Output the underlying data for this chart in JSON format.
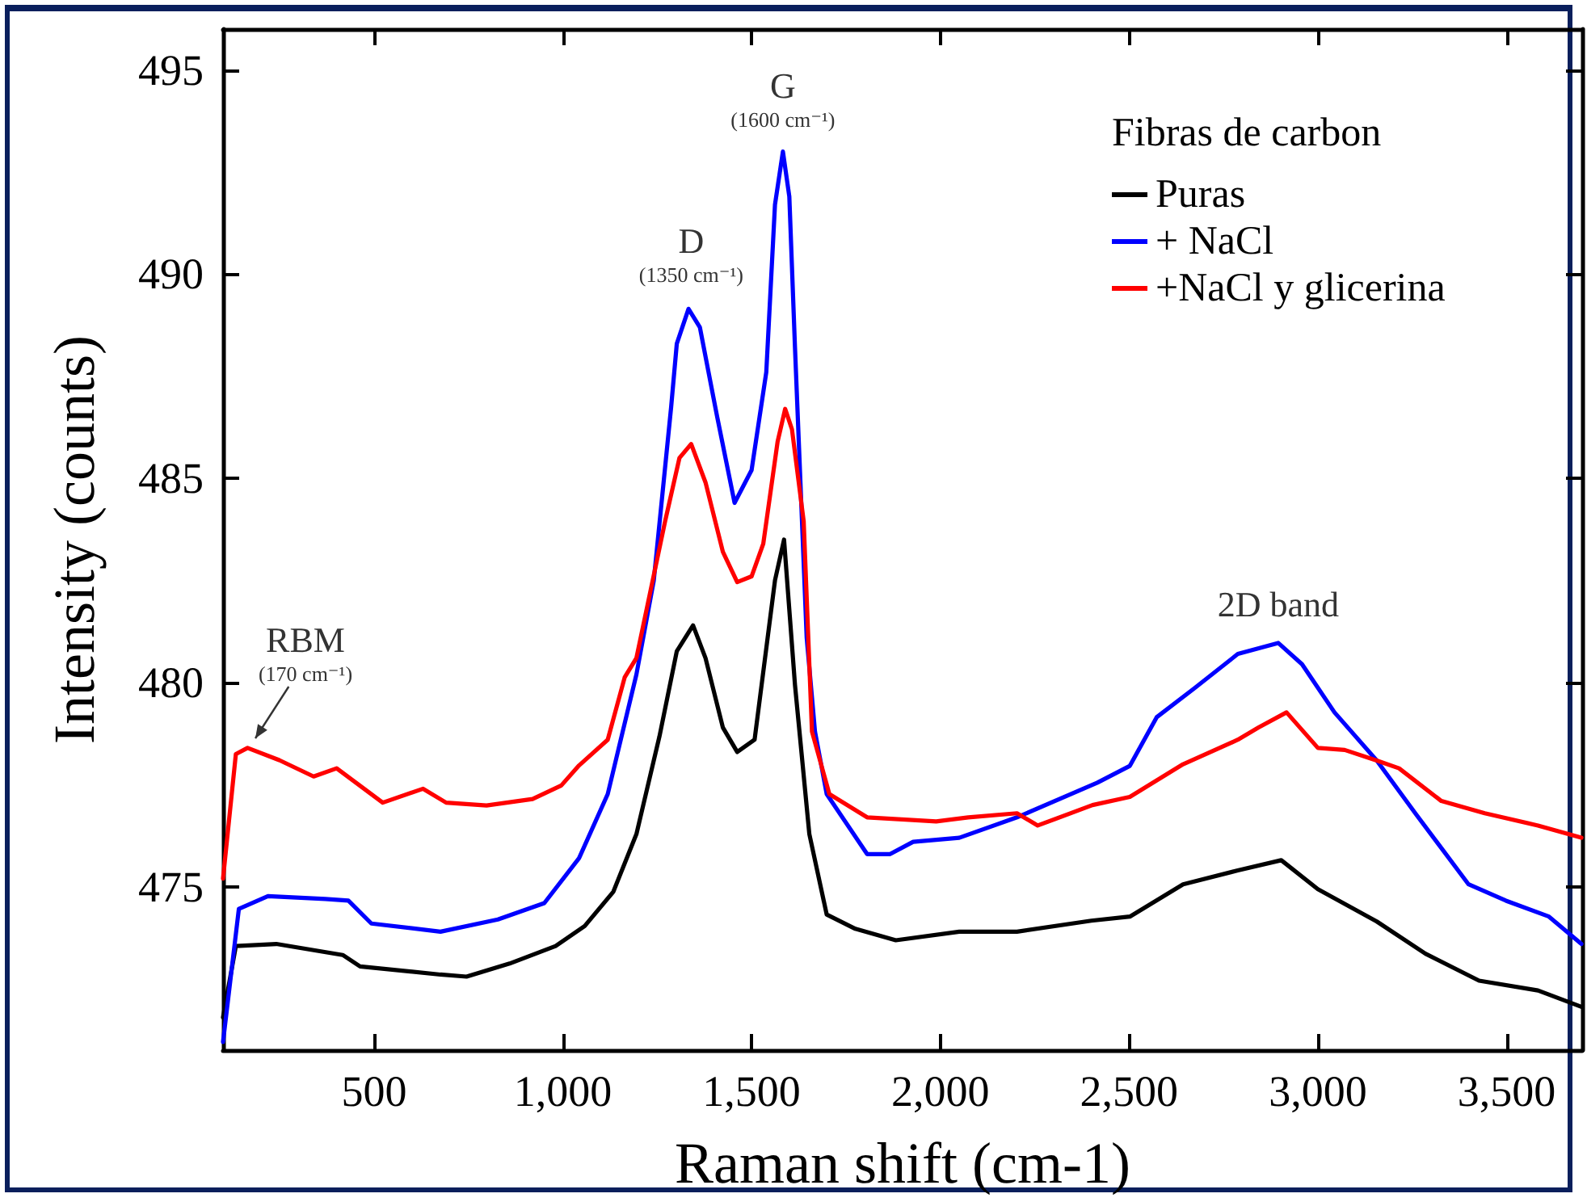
{
  "chart_data": {
    "type": "line",
    "xlabel": "Raman shift (cm-1)",
    "ylabel": "Intensity (counts)",
    "legend_title": "Fibras de carbon",
    "legend": "top right",
    "grid": false,
    "marker": "none",
    "line_style": "solid",
    "xlim": [
      100,
      3700
    ],
    "ylim": [
      471,
      496
    ],
    "xticks": [
      500,
      {
        "value": 1000,
        "label": "1,000"
      },
      {
        "value": 1500,
        "label": "1,500"
      },
      {
        "value": 2000,
        "label": "2,000"
      },
      {
        "value": 2500,
        "label": "2,500"
      },
      {
        "value": 3000,
        "label": "3,000"
      },
      {
        "value": 3500,
        "label": "3,500"
      }
    ],
    "yticks": [
      475,
      480,
      485,
      490,
      495
    ],
    "annotations": [
      {
        "text": "RBM\n(170 cm⁻¹)",
        "x": 170,
        "y": 478.4
      },
      {
        "text": "D\n(1350 cm⁻¹)",
        "x": 1340,
        "y": 489.2
      },
      {
        "text": "G\n(1600 cm⁻¹)",
        "x": 1583,
        "y": 493.0
      },
      {
        "text": "2D band",
        "x": 2895,
        "y": 481.0
      }
    ],
    "series": [
      {
        "name": "Puras",
        "color": "#000000",
        "x": [
          100,
          134,
          241,
          417,
          463,
          676,
          745,
          859,
          981,
          1058,
          1134,
          1195,
          1256,
          1302,
          1345,
          1378,
          1424,
          1462,
          1508,
          1562,
          1586,
          1615,
          1653,
          1699,
          1775,
          1882,
          2050,
          2203,
          2400,
          2502,
          2643,
          2788,
          2903,
          3000,
          3156,
          3285,
          3427,
          3583,
          3698
        ],
        "values": [
          471.8,
          473.55,
          473.6,
          473.33,
          473.05,
          472.85,
          472.8,
          473.12,
          473.55,
          474.04,
          474.88,
          476.29,
          478.68,
          480.77,
          481.4,
          480.6,
          478.9,
          478.3,
          478.6,
          482.5,
          483.5,
          479.94,
          476.29,
          474.32,
          473.97,
          473.69,
          473.9,
          473.9,
          474.17,
          474.27,
          475.06,
          475.4,
          475.65,
          474.94,
          474.15,
          473.36,
          472.7,
          472.46,
          472.06
        ]
      },
      {
        "name": "+ NaCl",
        "color": "#0000ff",
        "x": [
          100,
          142,
          219,
          371,
          432,
          493,
          676,
          828,
          951,
          1043,
          1119,
          1195,
          1241,
          1287,
          1302,
          1333,
          1363,
          1409,
          1455,
          1500,
          1539,
          1562,
          1583,
          1600,
          1615,
          1646,
          1668,
          1699,
          1806,
          1867,
          1928,
          2050,
          2203,
          2416,
          2502,
          2573,
          2673,
          2788,
          2895,
          2958,
          3044,
          3156,
          3258,
          3399,
          3498,
          3612,
          3698
        ],
        "values": [
          471.2,
          474.46,
          474.77,
          474.7,
          474.66,
          474.1,
          473.9,
          474.2,
          474.6,
          475.7,
          477.27,
          480.2,
          482.5,
          486.75,
          488.3,
          489.15,
          488.7,
          486.5,
          484.4,
          485.2,
          487.6,
          491.7,
          493.0,
          491.9,
          488.2,
          481.1,
          478.8,
          477.27,
          475.8,
          475.8,
          476.1,
          476.2,
          476.7,
          477.55,
          477.96,
          479.15,
          479.86,
          480.7,
          480.97,
          480.45,
          479.27,
          478.09,
          476.8,
          475.06,
          474.66,
          474.27,
          473.6
        ]
      },
      {
        "name": "+NaCl y glicerina",
        "color": "#ff0000",
        "x": [
          100,
          134,
          165,
          249,
          340,
          401,
          523,
          630,
          691,
          798,
          920,
          996,
          1043,
          1119,
          1164,
          1195,
          1271,
          1309,
          1340,
          1378,
          1424,
          1462,
          1500,
          1531,
          1569,
          1589,
          1607,
          1638,
          1660,
          1706,
          1806,
          1989,
          2074,
          2203,
          2258,
          2403,
          2502,
          2643,
          2788,
          2843,
          2917,
          3000,
          3071,
          3156,
          3215,
          3327,
          3442,
          3583,
          3698
        ],
        "values": [
          475.2,
          478.25,
          478.4,
          478.1,
          477.7,
          477.9,
          477.06,
          477.4,
          477.06,
          476.99,
          477.15,
          477.48,
          477.97,
          478.6,
          480.13,
          480.6,
          483.95,
          485.5,
          485.84,
          484.9,
          483.2,
          482.46,
          482.6,
          483.4,
          485.9,
          486.7,
          486.2,
          483.95,
          478.8,
          477.27,
          476.7,
          476.6,
          476.7,
          476.8,
          476.5,
          477.0,
          477.2,
          478.0,
          478.6,
          478.9,
          479.27,
          478.4,
          478.35,
          478.09,
          477.9,
          477.1,
          476.8,
          476.5,
          476.2
        ]
      }
    ]
  }
}
